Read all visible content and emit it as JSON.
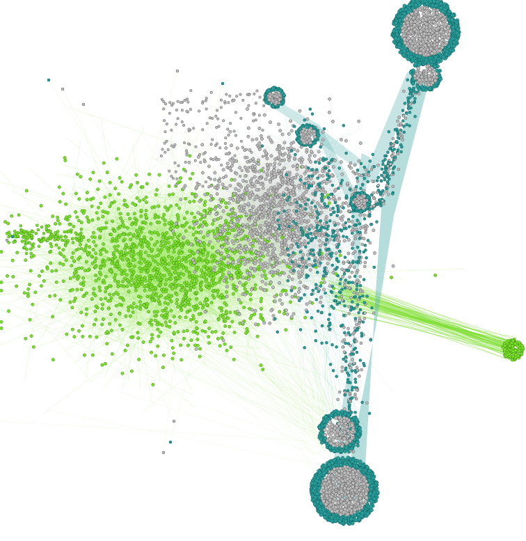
{
  "diagram": {
    "kind": "network-graph",
    "background": "#ffffff",
    "communities": [
      {
        "name": "green",
        "color": "#7be02c",
        "stroke": "#3d8a0c"
      },
      {
        "name": "teal",
        "color": "#2a9d9a",
        "stroke": "#0d5e5c"
      },
      {
        "name": "grey",
        "color": "#bdbdbd",
        "stroke": "#5a5a5a"
      }
    ],
    "edge_colors": {
      "green": "#7ee02f",
      "teal": "#5cb3b2"
    }
  }
}
